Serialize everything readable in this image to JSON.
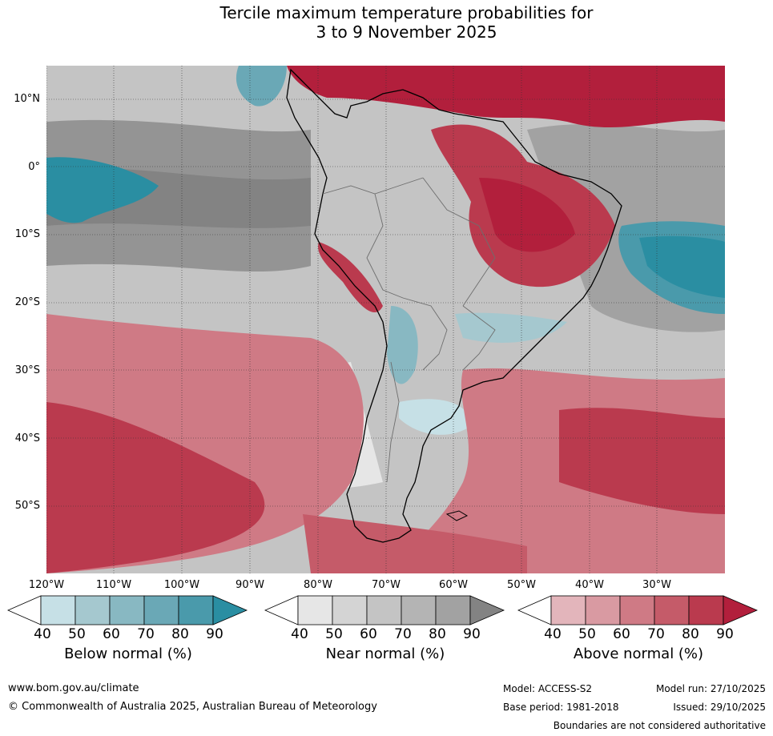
{
  "title": {
    "line1": "Tercile maximum temperature probabilities for",
    "line2": "3 to 9 November 2025"
  },
  "axes": {
    "lat_labels": [
      "10°N",
      "0°",
      "10°S",
      "20°S",
      "30°S",
      "40°S",
      "50°S"
    ],
    "lon_labels": [
      "120°W",
      "110°W",
      "100°W",
      "90°W",
      "80°W",
      "70°W",
      "60°W",
      "50°W",
      "40°W",
      "30°W"
    ]
  },
  "colorbars": [
    {
      "title": "Below normal (%)",
      "ticks": [
        "40",
        "50",
        "60",
        "70",
        "80",
        "90"
      ],
      "colors": [
        "#ffffff",
        "#c6e0e6",
        "#a5c8cf",
        "#88b8c2",
        "#6aa8b6",
        "#4a9aab",
        "#2a8ea2"
      ]
    },
    {
      "title": "Near normal (%)",
      "ticks": [
        "40",
        "50",
        "60",
        "70",
        "80",
        "90"
      ],
      "colors": [
        "#ffffff",
        "#e6e6e6",
        "#d4d4d4",
        "#c4c4c4",
        "#b4b4b4",
        "#a2a2a2",
        "#838383"
      ]
    },
    {
      "title": "Above normal (%)",
      "ticks": [
        "40",
        "50",
        "60",
        "70",
        "80",
        "90"
      ],
      "colors": [
        "#ffffff",
        "#e3b5bb",
        "#d99aa2",
        "#cf7a85",
        "#c55b69",
        "#ba3a4e",
        "#b21f3c"
      ]
    }
  ],
  "footer": {
    "url": "www.bom.gov.au/climate",
    "copyright": "© Commonwealth of Australia 2025, Australian Bureau of Meteorology",
    "model": "Model: ACCESS-S2",
    "base_period": "Base period: 1981-2018",
    "model_run": "Model run: 27/10/2025",
    "issued": "Issued: 29/10/2025",
    "disclaimer": "Boundaries are not considered authoritative"
  }
}
